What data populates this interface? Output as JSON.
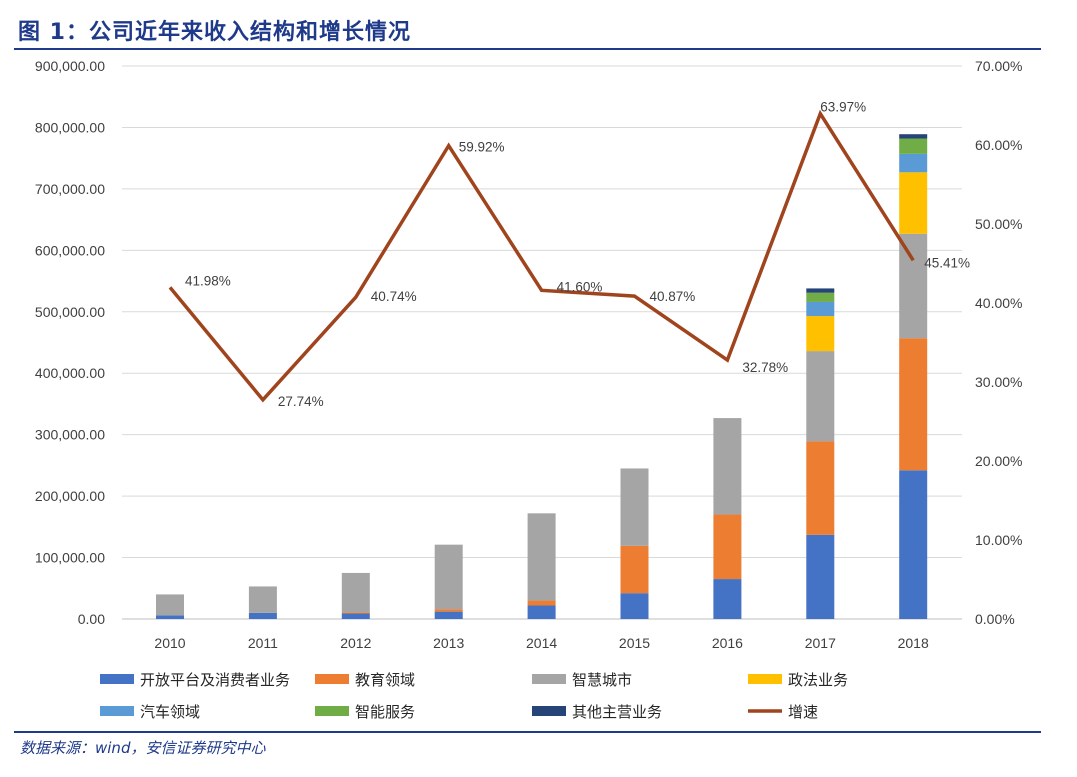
{
  "header": {
    "title": "图 1：公司近年来收入结构和增长情况"
  },
  "footer": {
    "source": "数据来源：wind，安信证券研究中心"
  },
  "chart_data": {
    "type": "bar",
    "stacked": true,
    "title": "图 1：公司近年来收入结构和增长情况",
    "categories": [
      "2010",
      "2011",
      "2012",
      "2013",
      "2014",
      "2015",
      "2016",
      "2017",
      "2018"
    ],
    "ylim": [
      0,
      900000
    ],
    "y_ticks": [
      "0.00",
      "100,000.00",
      "200,000.00",
      "300,000.00",
      "400,000.00",
      "500,000.00",
      "600,000.00",
      "700,000.00",
      "800,000.00",
      "900,000.00"
    ],
    "y2lim": [
      0,
      70
    ],
    "y2_ticks": [
      "0.00%",
      "10.00%",
      "20.00%",
      "30.00%",
      "40.00%",
      "50.00%",
      "60.00%",
      "70.00%"
    ],
    "grid": true,
    "legend_position": "bottom",
    "series": [
      {
        "name": "开放平台及消费者业务",
        "color": "#4472c4",
        "values": [
          6000,
          10000,
          9000,
          12000,
          22000,
          42000,
          65000,
          137000,
          242000
        ]
      },
      {
        "name": "教育领域",
        "color": "#ed7d31",
        "values": [
          0,
          0,
          2000,
          4000,
          8000,
          77000,
          105000,
          152000,
          215000
        ]
      },
      {
        "name": "智慧城市",
        "color": "#a5a5a5",
        "values": [
          34000,
          43000,
          64000,
          105000,
          142000,
          126000,
          157000,
          147000,
          170000
        ]
      },
      {
        "name": "政法业务",
        "color": "#ffc000",
        "values": [
          0,
          0,
          0,
          0,
          0,
          0,
          0,
          57000,
          100000
        ]
      },
      {
        "name": "汽车领域",
        "color": "#5b9bd5",
        "values": [
          0,
          0,
          0,
          0,
          0,
          0,
          0,
          23000,
          30000
        ]
      },
      {
        "name": "智能服务",
        "color": "#70ad47",
        "values": [
          0,
          0,
          0,
          0,
          0,
          0,
          0,
          15000,
          25000
        ]
      },
      {
        "name": "其他主营业务",
        "color": "#264478",
        "values": [
          0,
          0,
          0,
          0,
          0,
          0,
          0,
          7000,
          7000
        ]
      }
    ],
    "line_series": {
      "name": "增速",
      "color": "#a0441e",
      "axis": "right",
      "values": [
        41.98,
        27.74,
        40.74,
        59.92,
        41.6,
        40.87,
        32.78,
        63.97,
        45.41
      ],
      "labels": [
        "41.98%",
        "27.74%",
        "40.74%",
        "59.92%",
        "41.60%",
        "40.87%",
        "32.78%",
        "63.97%",
        "45.41%"
      ]
    }
  }
}
